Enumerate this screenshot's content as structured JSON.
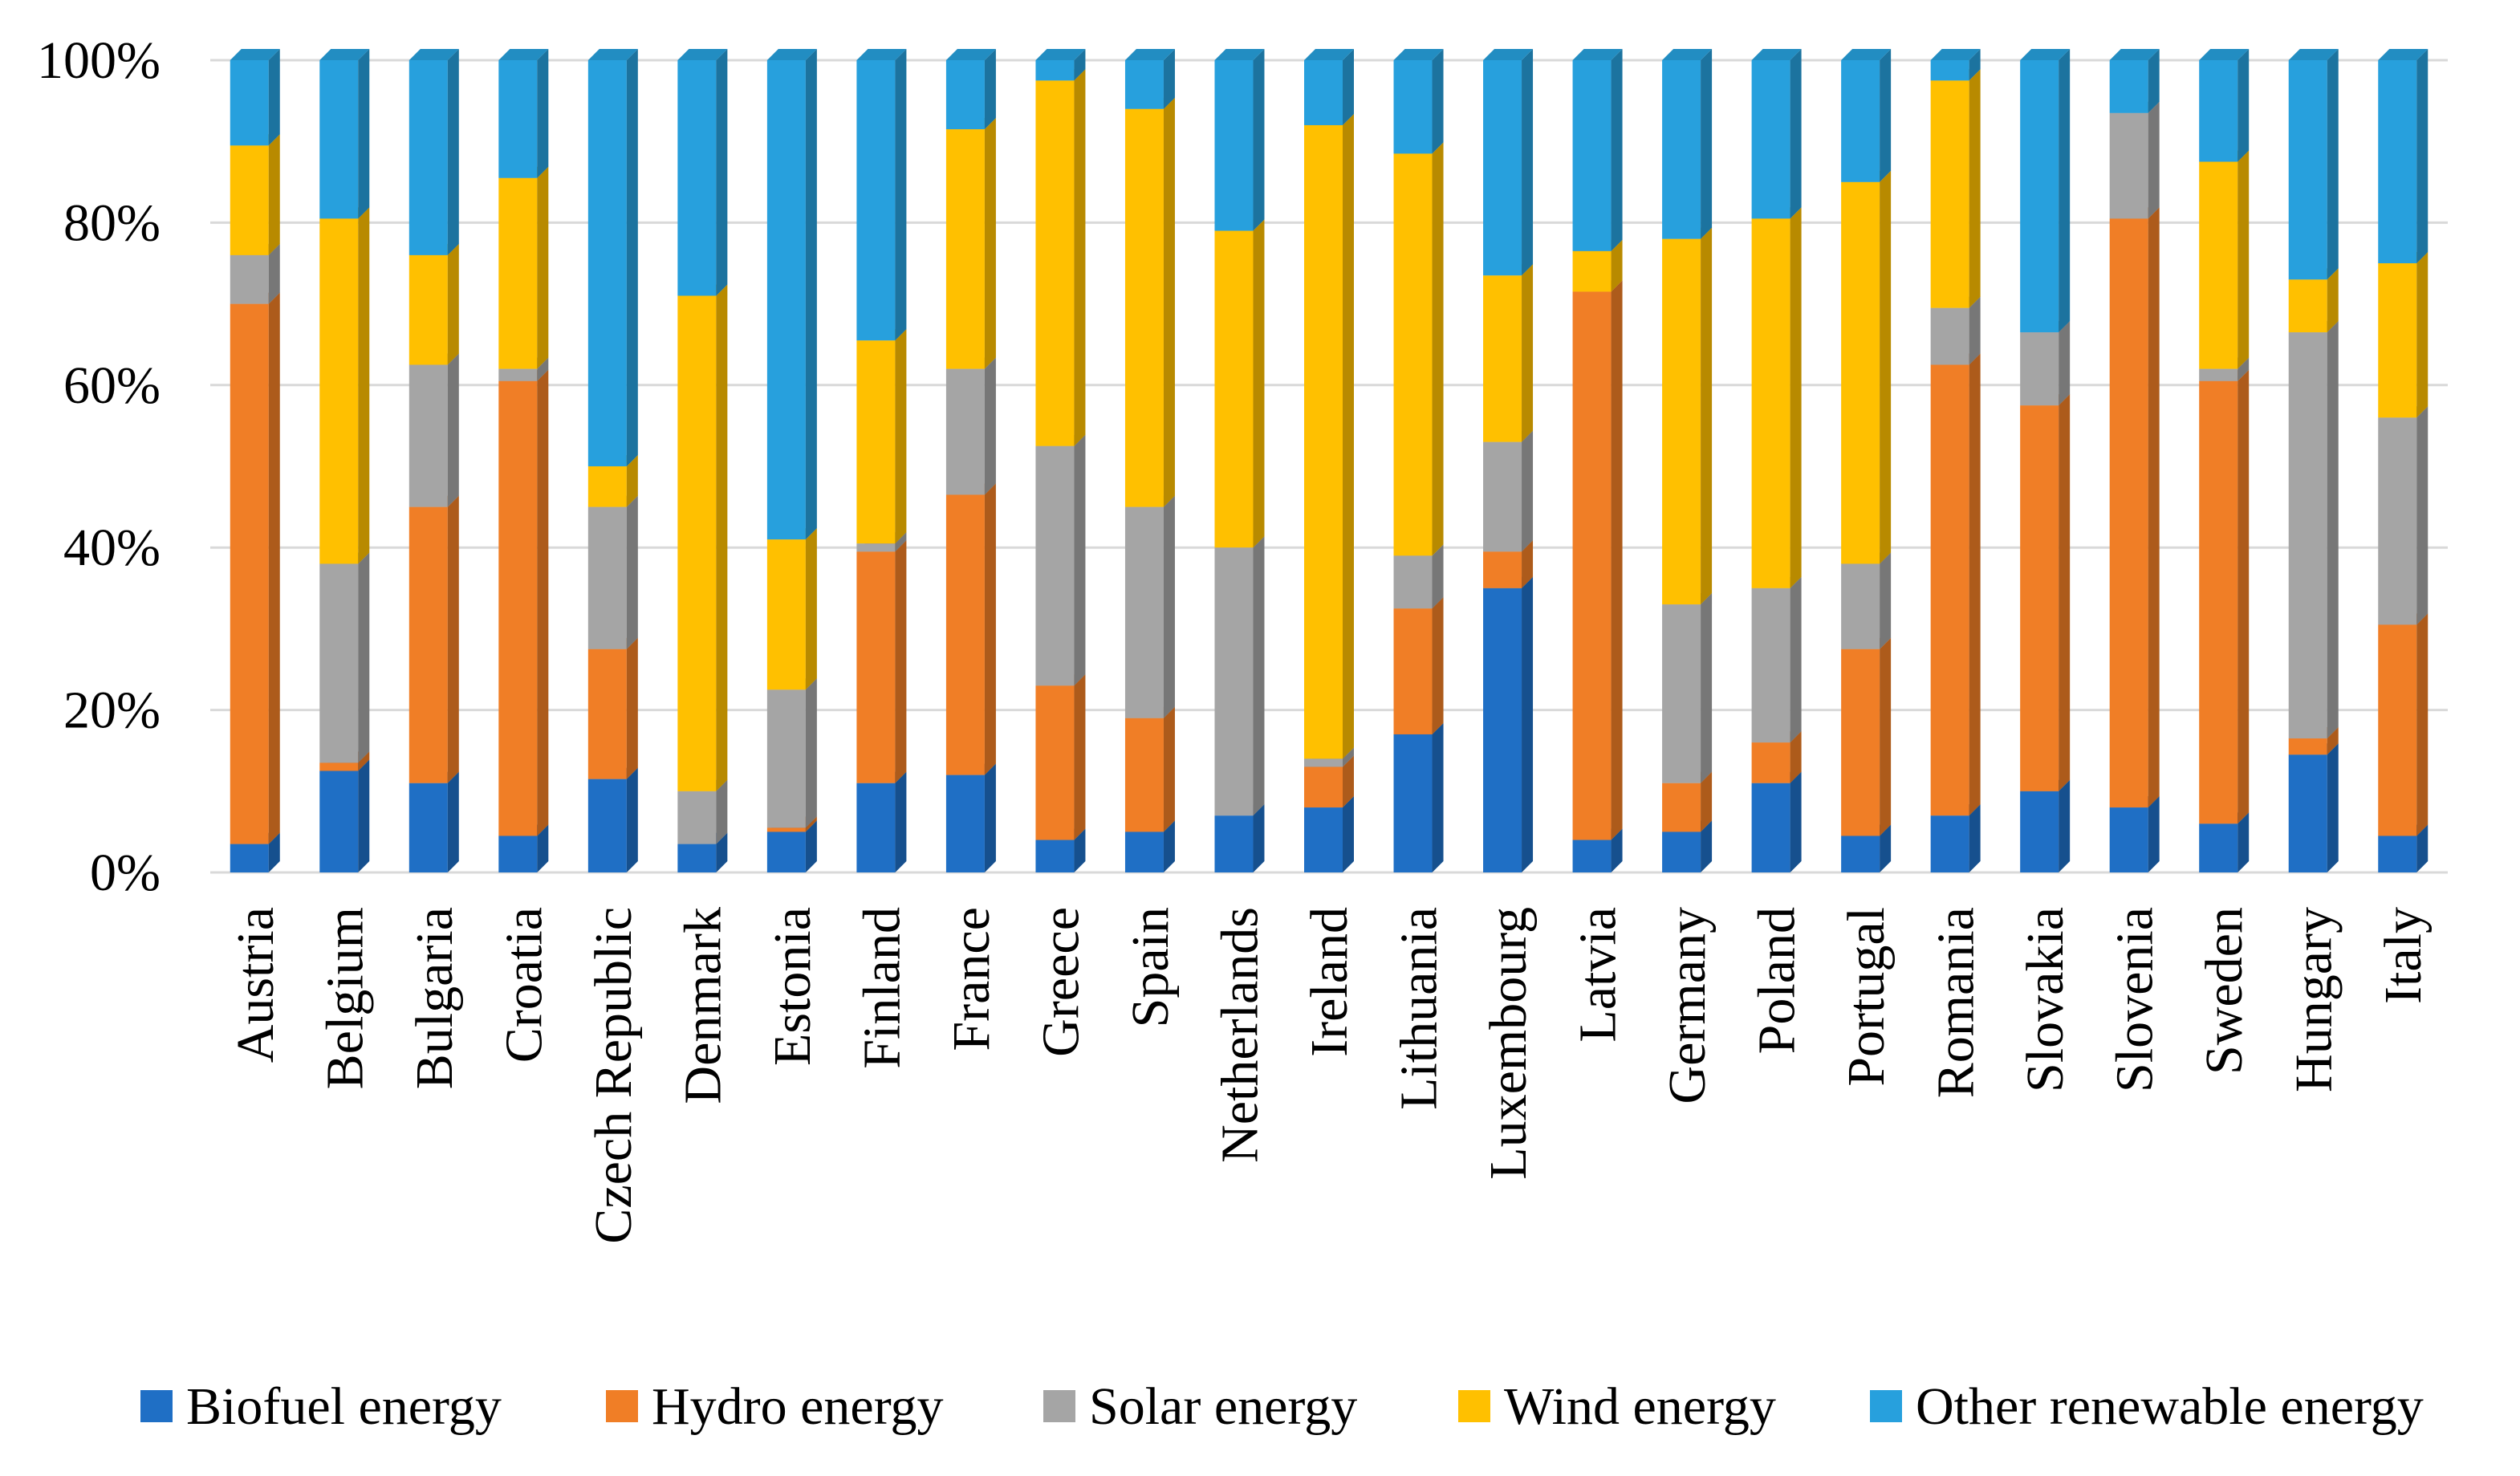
{
  "chart_data": {
    "type": "bar",
    "stacked": "percent",
    "title": "",
    "xlabel": "",
    "ylabel": "",
    "ylim": [
      0,
      100
    ],
    "yticks": [
      "0%",
      "20%",
      "40%",
      "60%",
      "80%",
      "100%"
    ],
    "categories": [
      "Austria",
      "Belgium",
      "Bulgaria",
      "Croatia",
      "Czech Republic",
      "Denmark",
      "Estonia",
      "Finland",
      "France",
      "Greece",
      "Spain",
      "Netherlands",
      "Ireland",
      "Lithuania",
      "Luxembourg",
      "Latvia",
      "Germany",
      "Poland",
      "Portugal",
      "Romania",
      "Slovakia",
      "Slovenia",
      "Sweden",
      "Hungary",
      "Italy"
    ],
    "series": [
      {
        "name": "Biofuel energy",
        "color": "#1F6FC5",
        "values": [
          3.5,
          12.5,
          11,
          4.5,
          11.5,
          3.5,
          5,
          11,
          12,
          4,
          5,
          7,
          8,
          17,
          35,
          4,
          5,
          11,
          4.5,
          7,
          10,
          8,
          6,
          14.5,
          4.5
        ]
      },
      {
        "name": "Hydro energy",
        "color": "#F07E26",
        "values": [
          66.5,
          1,
          34,
          56,
          16,
          0,
          0.5,
          28.5,
          34.5,
          19,
          14,
          0,
          5,
          15.5,
          4.5,
          67.5,
          6,
          5,
          23,
          55.5,
          47.5,
          72.5,
          54.5,
          2,
          26
        ]
      },
      {
        "name": "Solar energy",
        "color": "#A5A5A5",
        "values": [
          6,
          24.5,
          17.5,
          1.5,
          17.5,
          6.5,
          17,
          1,
          15.5,
          29.5,
          26,
          33,
          1,
          6.5,
          13.5,
          0,
          22,
          19,
          10.5,
          7,
          9,
          13,
          1.5,
          50,
          25.5
        ]
      },
      {
        "name": "Wind energy",
        "color": "#FFC000",
        "values": [
          13.5,
          42.5,
          13.5,
          23.5,
          5,
          61,
          18.5,
          25,
          29.5,
          45,
          49,
          39,
          78,
          49.5,
          20.5,
          5,
          45,
          45.5,
          47,
          28,
          0,
          0,
          25.5,
          6.5,
          19
        ]
      },
      {
        "name": "Other renewable energy",
        "color": "#27A0DD",
        "values": [
          10.5,
          19.5,
          24,
          14.5,
          50,
          29,
          59,
          34.5,
          8.5,
          2.5,
          6,
          21,
          8,
          11.5,
          26.5,
          23.5,
          22,
          19.5,
          15,
          2.5,
          33.5,
          6.5,
          12.5,
          27,
          25
        ]
      }
    ],
    "legend_position": "bottom"
  }
}
